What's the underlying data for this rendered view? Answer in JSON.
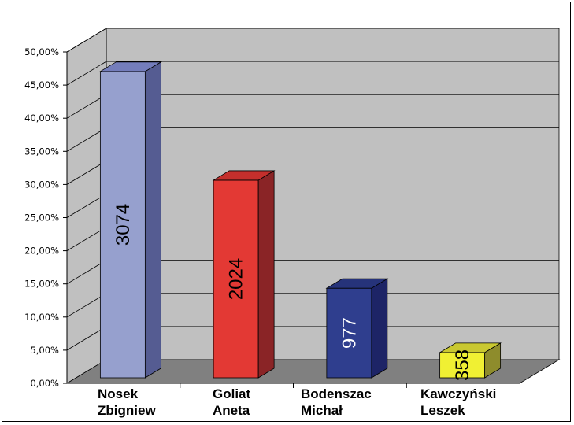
{
  "chart_data": {
    "type": "bar",
    "title": "",
    "xlabel": "",
    "ylabel": "",
    "ylim": [
      0,
      50
    ],
    "y_ticks": [
      "0,00%",
      "5,00%",
      "10,00%",
      "15,00%",
      "20,00%",
      "25,00%",
      "30,00%",
      "35,00%",
      "40,00%",
      "45,00%",
      "50,00%"
    ],
    "grid": true,
    "three_d": true,
    "legend": "none",
    "categories": [
      [
        "Nosek",
        "Zbigniew"
      ],
      [
        "Goliat",
        "Aneta"
      ],
      [
        "Bodenszac",
        "Michał"
      ],
      [
        "Kawczyński",
        "Leszek"
      ]
    ],
    "values": [
      48.0,
      31.6,
      15.3,
      5.6
    ],
    "data_labels": [
      "3074",
      "2024",
      "977",
      "358"
    ],
    "colors": [
      {
        "front": "#96A0CE",
        "side": "#555C92",
        "top": "#747DBB",
        "label": "#000000"
      },
      {
        "front": "#E33934",
        "side": "#8A2426",
        "top": "#C42F2C",
        "label": "#000000"
      },
      {
        "front": "#2F3E8E",
        "side": "#1D2466",
        "top": "#26337A",
        "label": "#FFFFFF"
      },
      {
        "front": "#F0F033",
        "side": "#8E8C2C",
        "top": "#C9C831",
        "label": "#000000"
      }
    ],
    "wall_color": "#C0C0C0",
    "floor_color": "#808080"
  }
}
